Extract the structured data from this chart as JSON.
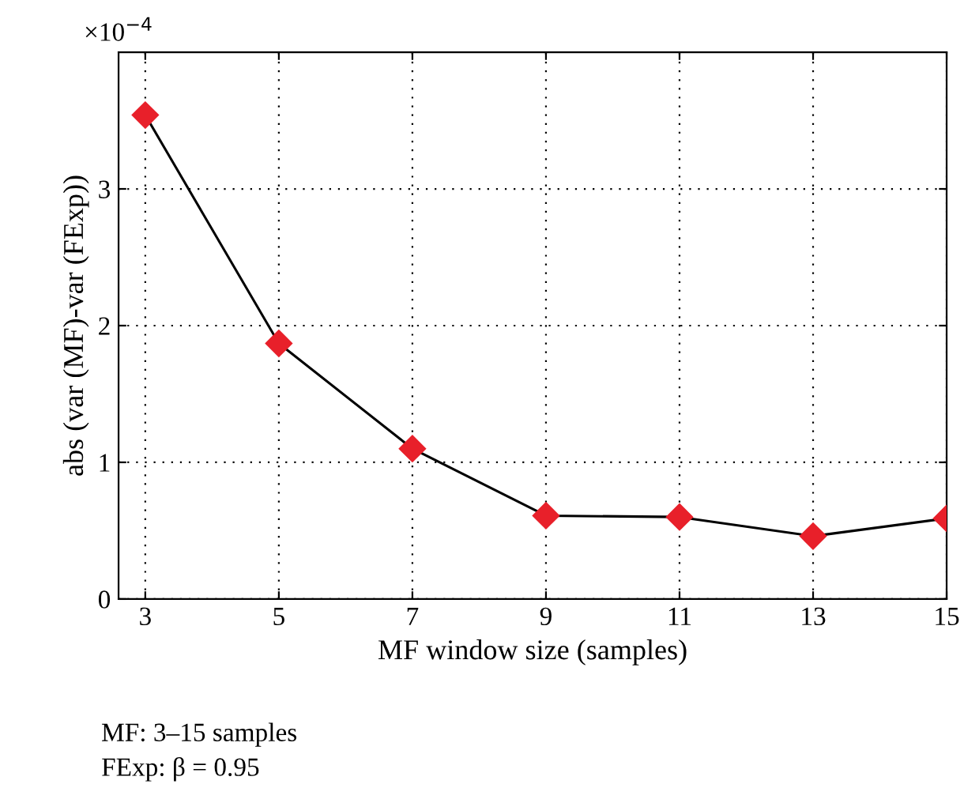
{
  "chart_data": {
    "type": "line",
    "xlabel": "MF window size (samples)",
    "ylabel": "abs (var (MF)-var (FExp))",
    "x": [
      3,
      5,
      7,
      9,
      11,
      13,
      15
    ],
    "series": [
      {
        "color": "#e8202a",
        "values": [
          3.54,
          1.87,
          1.1,
          0.61,
          0.6,
          0.46,
          0.59
        ]
      }
    ],
    "xlim": [
      2.6,
      15
    ],
    "xticks": [
      3,
      5,
      7,
      9,
      11,
      13,
      15
    ],
    "ylim": [
      0,
      4
    ],
    "yticks": [
      0,
      1,
      2,
      3
    ],
    "grid": true,
    "marker": "diamond",
    "line_style": "solid",
    "annotations": [
      "×10$^{−4}$",
      "MF: 3–15 samples",
      "FExp: β = 0.95"
    ]
  }
}
